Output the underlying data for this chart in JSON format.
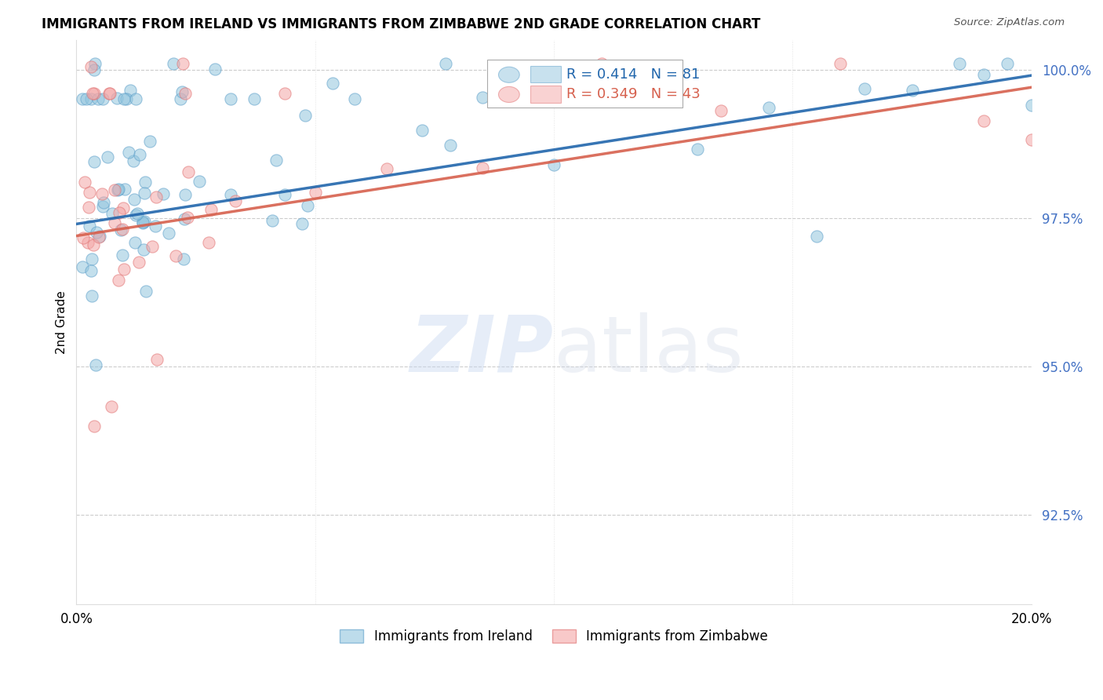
{
  "title": "IMMIGRANTS FROM IRELAND VS IMMIGRANTS FROM ZIMBABWE 2ND GRADE CORRELATION CHART",
  "source": "Source: ZipAtlas.com",
  "ylabel": "2nd Grade",
  "xlim": [
    0.0,
    0.2
  ],
  "ylim": [
    0.91,
    1.005
  ],
  "yticks": [
    0.925,
    0.95,
    0.975,
    1.0
  ],
  "ytick_labels": [
    "92.5%",
    "95.0%",
    "97.5%",
    "100.0%"
  ],
  "ireland_R": 0.414,
  "ireland_N": 81,
  "zimbabwe_R": 0.349,
  "zimbabwe_N": 43,
  "ireland_color": "#92c5de",
  "zimbabwe_color": "#f4a6a6",
  "ireland_line_color": "#2166ac",
  "zimbabwe_line_color": "#d6604d",
  "ireland_edge_color": "#5b9ec9",
  "zimbabwe_edge_color": "#e07070",
  "ytick_color": "#4472c4",
  "legend_ireland": "Immigrants from Ireland",
  "legend_zimbabwe": "Immigrants from Zimbabwe",
  "grid_color": "#cccccc",
  "spine_color": "#dddddd"
}
